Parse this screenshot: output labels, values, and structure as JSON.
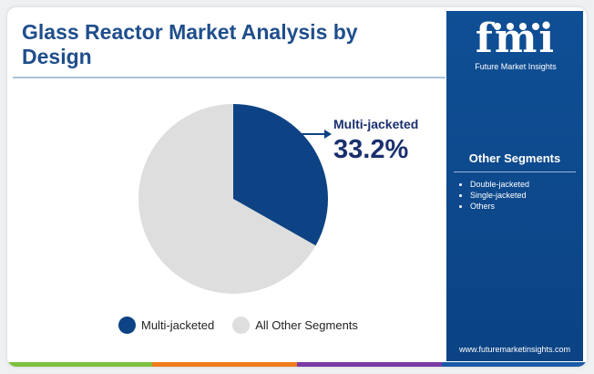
{
  "title": "Glass Reactor Market Analysis by Design",
  "colors": {
    "primary": "#0d4384",
    "other": "#dedede",
    "sidebar": "#0d4b8f",
    "title": "#1f4e8c",
    "bottom_bar": [
      "#7cbf3f",
      "#f07c1a",
      "#7b3aa6",
      "#1a5aa8"
    ]
  },
  "chart_data": {
    "type": "pie",
    "slices": [
      {
        "label": "Multi-jacketed",
        "value": 33.2,
        "color": "#0d4384"
      },
      {
        "label": "All Other Segments",
        "value": 66.8,
        "color": "#dedede"
      }
    ],
    "callout": {
      "label": "Multi-jacketed",
      "value_text": "33.2%"
    },
    "legend": [
      "Multi-jacketed",
      "All Other Segments"
    ],
    "legend_placement": "bottom"
  },
  "sidebar": {
    "logo_text": "fmi",
    "logo_subtitle": "Future Market Insights",
    "other_segments_title": "Other Segments",
    "other_segments": [
      "Double-jacketed",
      "Single-jacketed",
      "Others"
    ],
    "website": "www.futuremarketinsights.com"
  }
}
